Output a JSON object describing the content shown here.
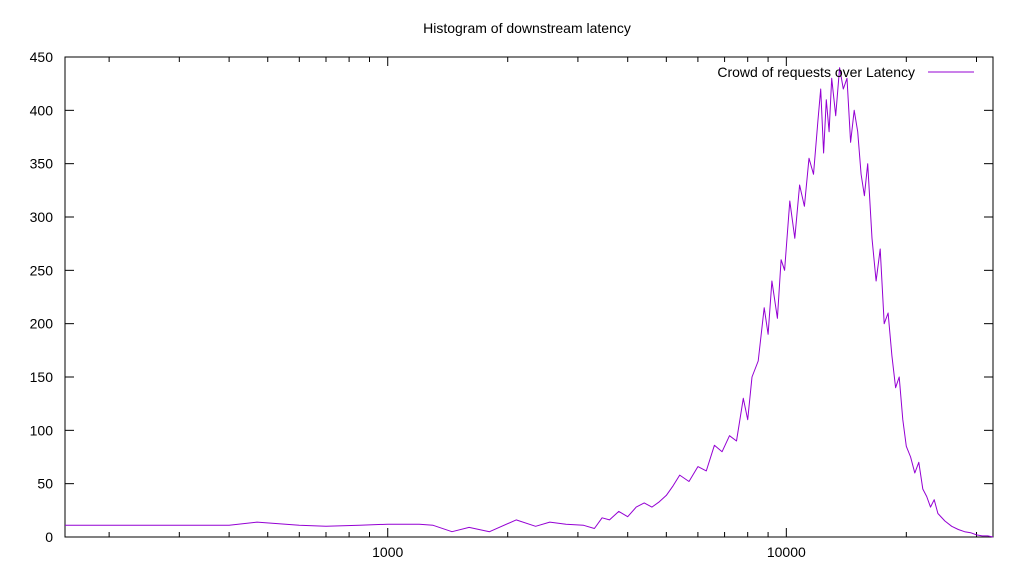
{
  "chart_data": {
    "type": "line",
    "title": "Histogram of downstream latency",
    "xlabel": "",
    "ylabel": "",
    "x_scale": "log",
    "xlim": [
      155,
      33000
    ],
    "ylim": [
      0,
      450
    ],
    "x_ticks": [
      1000,
      10000
    ],
    "x_tick_labels": [
      "1000",
      "10000"
    ],
    "y_ticks": [
      0,
      50,
      100,
      150,
      200,
      250,
      300,
      350,
      400,
      450
    ],
    "y_tick_labels": [
      "0",
      "50",
      "100",
      "150",
      "200",
      "250",
      "300",
      "350",
      "400",
      "450"
    ],
    "grid": false,
    "legend_position": "top-right",
    "series": [
      {
        "name": "Crowd of requests over Latency",
        "color": "#9400d3",
        "x": [
          155,
          250,
          400,
          470,
          600,
          700,
          850,
          1000,
          1200,
          1300,
          1450,
          1600,
          1800,
          2100,
          2350,
          2550,
          2800,
          3100,
          3300,
          3450,
          3600,
          3800,
          4000,
          4200,
          4400,
          4600,
          4800,
          5000,
          5200,
          5400,
          5700,
          6000,
          6300,
          6600,
          6900,
          7200,
          7500,
          7800,
          8000,
          8200,
          8500,
          8800,
          9000,
          9200,
          9500,
          9700,
          9900,
          10200,
          10500,
          10800,
          11100,
          11400,
          11700,
          12000,
          12200,
          12400,
          12600,
          12800,
          13000,
          13300,
          13600,
          13900,
          14200,
          14500,
          14800,
          15100,
          15400,
          15700,
          16000,
          16400,
          16800,
          17200,
          17600,
          18000,
          18400,
          18800,
          19200,
          19600,
          20000,
          20500,
          21000,
          21500,
          22000,
          22500,
          23000,
          23500,
          24000,
          25000,
          26000,
          27000,
          28000,
          29000,
          30000,
          31000,
          32000,
          33000
        ],
        "values": [
          11,
          11,
          11,
          14,
          11,
          10,
          11,
          12,
          12,
          11,
          5,
          9,
          5,
          16,
          10,
          14,
          12,
          11,
          8,
          18,
          16,
          24,
          19,
          28,
          32,
          28,
          33,
          39,
          48,
          58,
          52,
          66,
          62,
          86,
          80,
          95,
          90,
          130,
          110,
          150,
          165,
          215,
          190,
          240,
          205,
          260,
          250,
          315,
          280,
          330,
          310,
          355,
          340,
          390,
          420,
          360,
          410,
          380,
          430,
          395,
          440,
          420,
          430,
          370,
          400,
          380,
          340,
          320,
          350,
          280,
          240,
          270,
          200,
          210,
          170,
          140,
          150,
          110,
          85,
          75,
          60,
          70,
          45,
          38,
          28,
          35,
          22,
          15,
          10,
          7,
          5,
          4,
          2,
          1,
          1,
          0
        ]
      }
    ]
  }
}
